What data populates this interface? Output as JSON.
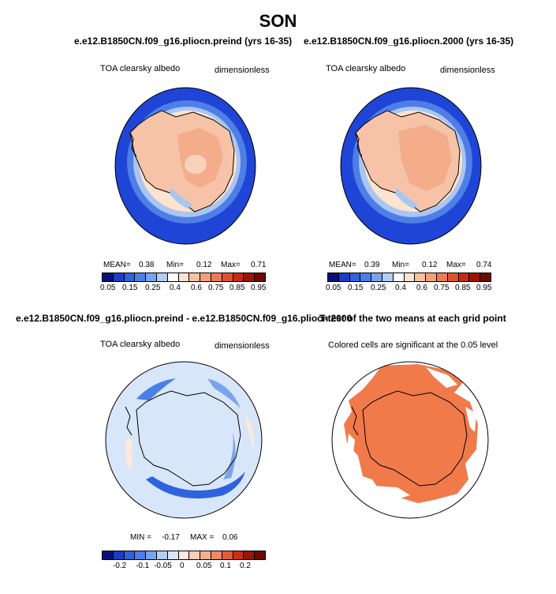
{
  "season": "SON",
  "panels": {
    "tl": {
      "title": "e.e12.B1850CN.f09_g16.pliocn.preind (yrs 16-35)",
      "variable": "TOA clearsky albedo",
      "units": "dimensionless",
      "mean_label": "MEAN=",
      "mean": "0.38",
      "min_label": "Min=",
      "min": "0.12",
      "max_label": "Max=",
      "max": "0.71"
    },
    "tr": {
      "title": "e.e12.B1850CN.f09_g16.pliocn.2000 (yrs 16-35)",
      "variable": "TOA clearsky albedo",
      "units": "dimensionless",
      "mean_label": "MEAN=",
      "mean": "0.39",
      "min_label": "Min=",
      "min": "0.12",
      "max_label": "Max=",
      "max": "0.74"
    },
    "bl": {
      "title": "e.e12.B1850CN.f09_g16.pliocn.preind - e.e12.B1850CN.f09_g16.pliocn.2000",
      "variable": "TOA clearsky albedo",
      "units": "dimensionless",
      "min_label": "MIN =",
      "min": "-0.17",
      "max_label": "MAX =",
      "max": "0.06"
    },
    "br": {
      "title": "T-test of the two means at each grid point",
      "subtitle": "Colored cells are significant at the 0.05 level"
    }
  },
  "colorbar_abs": {
    "colors": [
      "#0b0f7a",
      "#1c3cc6",
      "#2e62de",
      "#4a7fe6",
      "#7aa3ee",
      "#b2cdf5",
      "#ffffff",
      "#fde3d0",
      "#f7c1a2",
      "#f49f7c",
      "#ee7a54",
      "#e0502e",
      "#c62a14",
      "#9b1505",
      "#6e0a02"
    ],
    "ticks": [
      "0.05",
      "0.15",
      "0.25",
      "0.4",
      "0.6",
      "0.75",
      "0.85",
      "0.95"
    ]
  },
  "colorbar_diff": {
    "colors": [
      "#0b0f7a",
      "#1c3cc6",
      "#2e62de",
      "#4a7fe6",
      "#7aa3ee",
      "#b2cdf5",
      "#d8e6fa",
      "#fde9dc",
      "#fccfb5",
      "#f7b08d",
      "#f08a62",
      "#e45d36",
      "#c83017",
      "#9c1506",
      "#6e0a02"
    ],
    "ticks": [
      "-0.2",
      "-0.1",
      "-0.05",
      "0",
      "0.05",
      "0.1",
      "0.2"
    ]
  },
  "map_colors": {
    "ocean_low": "#1f45d6",
    "ocean_band": "#4f7ee6",
    "ice_edge": "#c6dcf7",
    "land": "#f7c3a8",
    "land_interior": "#f4ad8b",
    "diff_background": "#d8e6fa",
    "diff_negative": "#4a7fe6",
    "diff_positive": "#fde9dc",
    "significant": "#f07a4a"
  }
}
